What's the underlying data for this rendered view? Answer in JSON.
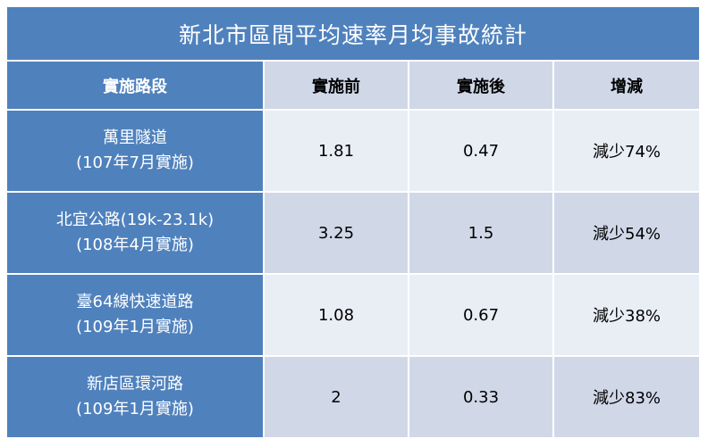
{
  "table": {
    "title": "新北市區間平均速率月均事故統計",
    "headers": [
      "實施路段",
      "實施前",
      "實施後",
      "增減"
    ],
    "rows": [
      {
        "road": "萬里隧道",
        "note": "(107年7月實施)",
        "before": "1.81",
        "after": "0.47",
        "change": "減少74%"
      },
      {
        "road": "北宜公路(19k-23.1k)",
        "note": "(108年4月實施)",
        "before": "3.25",
        "after": "1.5",
        "change": "減少54%"
      },
      {
        "road": "臺64線快速道路",
        "note": "(109年1月實施)",
        "before": "1.08",
        "after": "0.67",
        "change": "減少38%"
      },
      {
        "road": "新店區環河路",
        "note": "(109年1月實施)",
        "before": "2",
        "after": "0.33",
        "change": "減少83%"
      }
    ]
  },
  "colors": {
    "header_blue": "#4f81bd",
    "band_dark": "#d0d8e8",
    "band_light": "#e9edf4"
  }
}
